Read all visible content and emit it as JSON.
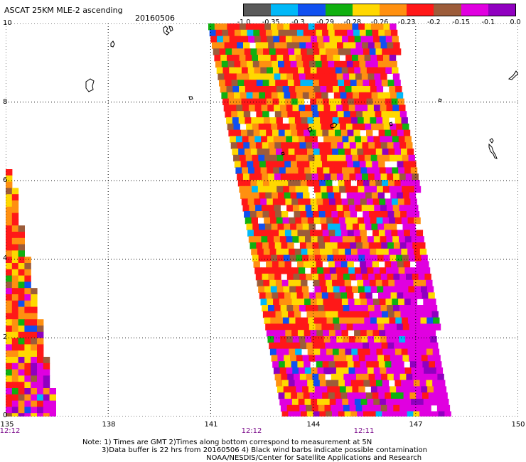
{
  "header": {
    "title": "ASCAT 25KM MLE-2 ascending",
    "date": "20160506"
  },
  "colorbar": {
    "colors": [
      "#5a5a5a",
      "#00b8f8",
      "#1050f0",
      "#10b010",
      "#ffd800",
      "#ff9010",
      "#ff1818",
      "#9c5c3a",
      "#e000e0",
      "#9000c0"
    ],
    "labels": [
      "-1.0",
      "-0.35",
      "-0.3",
      "-0.29",
      "-0.28",
      "-0.26",
      "-0.23",
      "-0.2",
      "-0.15",
      "-0.1",
      "0.0"
    ]
  },
  "axes": {
    "x_ticks": [
      "135",
      "138",
      "141",
      "144",
      "147",
      "150"
    ],
    "y_ticks": [
      "0",
      "2",
      "4",
      "6",
      "8",
      "10"
    ],
    "x_range": [
      135,
      150
    ],
    "y_range": [
      0,
      10
    ]
  },
  "time_labels": [
    {
      "text": "12:12",
      "lon": 135.3
    },
    {
      "text": "12:12",
      "lon": 142.3
    },
    {
      "text": "12:11",
      "lon": 145.4
    }
  ],
  "notes": [
    "Note: 1) Times are GMT 2)Times along bottom correspond to measurement at 5N",
    "3)Data buffer is 22 hrs from 20160506 4) Black wind barbs indicate possible contamination",
    "NOAA/NESDIS/Center for Satellite Applications and Research"
  ]
}
